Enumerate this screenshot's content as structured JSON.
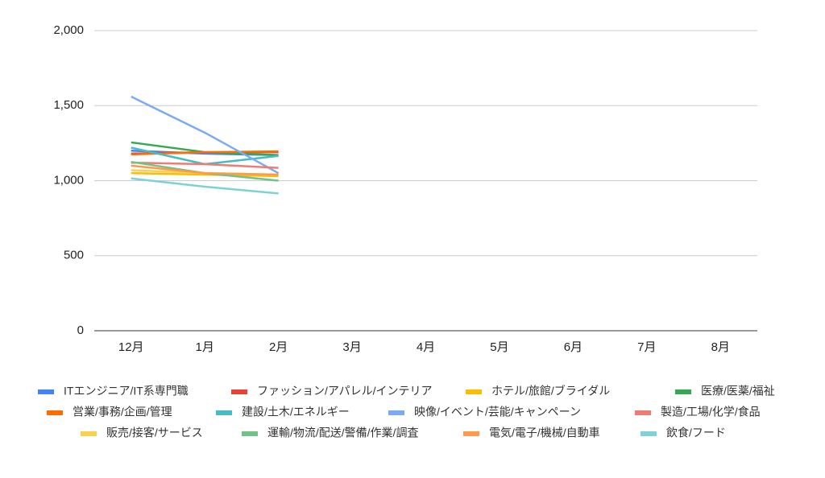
{
  "chart_data": {
    "type": "line",
    "categories": [
      "12月",
      "1月",
      "2月",
      "3月",
      "4月",
      "5月",
      "6月",
      "7月",
      "8月"
    ],
    "series": [
      {
        "name": "ITエンジニア/IT系専門職",
        "color": "#4285f4",
        "values": [
          1200,
          1180,
          1170,
          null,
          null,
          null,
          null,
          null,
          null
        ]
      },
      {
        "name": "ファッション/アパレル/インテリア",
        "color": "#ea4335",
        "values": [
          1180,
          1190,
          1190,
          null,
          null,
          null,
          null,
          null,
          null
        ]
      },
      {
        "name": "ホテル/旅館/ブライダル",
        "color": "#fbbc04",
        "values": [
          1050,
          1040,
          1030,
          null,
          null,
          null,
          null,
          null,
          null
        ]
      },
      {
        "name": "医療/医薬/福祉",
        "color": "#34a853",
        "values": [
          1255,
          1190,
          1170,
          null,
          null,
          null,
          null,
          null,
          null
        ]
      },
      {
        "name": "営業/事務/企画/管理",
        "color": "#ff6d01",
        "values": [
          1175,
          1190,
          1195,
          null,
          null,
          null,
          null,
          null,
          null
        ]
      },
      {
        "name": "建設/土木/エネルギー",
        "color": "#46bdc6",
        "values": [
          1220,
          1110,
          1165,
          null,
          null,
          null,
          null,
          null,
          null
        ]
      },
      {
        "name": "映像/イベント/芸能/キャンペーン",
        "color": "#7baaf7",
        "values": [
          1560,
          1320,
          1050,
          null,
          null,
          null,
          null,
          null,
          null
        ]
      },
      {
        "name": "製造/工場/化学/食品",
        "color": "#f07b72",
        "values": [
          1120,
          1110,
          1085,
          null,
          null,
          null,
          null,
          null,
          null
        ]
      },
      {
        "name": "販売/接客/サービス",
        "color": "#fcd04f",
        "values": [
          1070,
          1050,
          1040,
          null,
          null,
          null,
          null,
          null,
          null
        ]
      },
      {
        "name": "運輸/物流/配送/警備/作業/調査",
        "color": "#71c287",
        "values": [
          1125,
          1050,
          1000,
          null,
          null,
          null,
          null,
          null,
          null
        ]
      },
      {
        "name": "電気/電子/機械/自動車",
        "color": "#ff994d",
        "values": [
          1100,
          1050,
          1040,
          null,
          null,
          null,
          null,
          null,
          null
        ]
      },
      {
        "name": "飲食/フード",
        "color": "#7ed1d7",
        "values": [
          1015,
          960,
          915,
          null,
          null,
          null,
          null,
          null,
          null
        ]
      }
    ],
    "ylim": [
      0,
      2000
    ],
    "yticks": [
      0,
      500,
      {
        "value": 1000,
        "label": "1,000"
      },
      {
        "value": 1500,
        "label": "1,500"
      },
      {
        "value": 2000,
        "label": "2,000"
      }
    ],
    "grid": true,
    "legend": "bottom"
  }
}
